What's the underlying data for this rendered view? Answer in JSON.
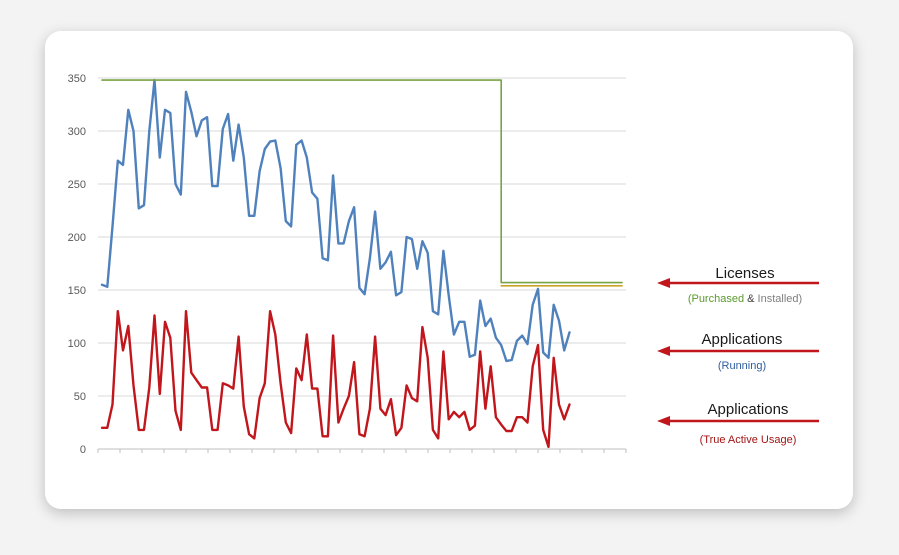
{
  "chart_data": {
    "type": "line",
    "title": "",
    "xlabel": "",
    "ylabel": "",
    "ylim": [
      0,
      350
    ],
    "yticks": [
      0,
      50,
      100,
      150,
      200,
      250,
      300,
      350
    ],
    "grid": true,
    "legend": "none",
    "x_count": 100,
    "series": [
      {
        "color": "#4f81bd",
        "values": [
          155,
          153,
          210,
          272,
          268,
          320,
          300,
          227,
          230,
          300,
          348,
          275,
          320,
          317,
          250,
          240,
          337,
          318,
          295,
          310,
          313,
          248,
          248,
          302,
          316,
          272,
          306,
          275,
          220,
          220,
          262,
          283,
          290,
          291,
          265,
          215,
          210,
          287,
          291,
          275,
          242,
          236,
          180,
          178,
          258,
          194,
          194,
          215,
          228,
          152,
          146,
          180,
          224,
          170,
          176,
          186,
          145,
          148,
          200,
          198,
          170,
          196,
          185,
          130,
          127,
          187,
          145,
          108,
          120,
          120,
          87,
          89,
          140,
          116,
          123,
          105,
          98,
          83,
          84,
          102,
          107,
          99,
          136,
          151,
          91,
          86,
          136,
          121,
          93,
          110
        ]
      },
      {
        "color": "#77a341",
        "values": [
          348,
          348,
          348,
          348,
          348,
          348,
          348,
          348,
          348,
          348,
          348,
          348,
          348,
          348,
          348,
          348,
          348,
          348,
          348,
          348,
          348,
          348,
          348,
          348,
          348,
          348,
          348,
          348,
          348,
          348,
          348,
          348,
          348,
          348,
          348,
          348,
          348,
          348,
          348,
          348,
          348,
          348,
          348,
          348,
          348,
          348,
          348,
          348,
          348,
          348,
          348,
          348,
          348,
          348,
          348,
          348,
          348,
          348,
          348,
          348,
          348,
          348,
          348,
          348,
          348,
          348,
          348,
          348,
          348,
          348,
          348,
          348,
          348,
          348,
          348,
          348,
          157,
          157,
          157,
          157,
          157,
          157,
          157,
          157,
          157,
          157,
          157,
          157,
          157,
          157,
          157,
          157,
          157,
          157,
          157,
          157,
          157,
          157,
          157,
          157
        ]
      },
      {
        "color": "#c9a227",
        "values": [
          null,
          null,
          null,
          null,
          null,
          null,
          null,
          null,
          null,
          null,
          null,
          null,
          null,
          null,
          null,
          null,
          null,
          null,
          null,
          null,
          null,
          null,
          null,
          null,
          null,
          null,
          null,
          null,
          null,
          null,
          null,
          null,
          null,
          null,
          null,
          null,
          null,
          null,
          null,
          null,
          null,
          null,
          null,
          null,
          null,
          null,
          null,
          null,
          null,
          null,
          null,
          null,
          null,
          null,
          null,
          null,
          null,
          null,
          null,
          null,
          null,
          null,
          null,
          null,
          null,
          null,
          null,
          null,
          null,
          null,
          null,
          null,
          null,
          null,
          null,
          null,
          154,
          154,
          154,
          154,
          154,
          154,
          154,
          154,
          154,
          154,
          154,
          154,
          154,
          154,
          154,
          154,
          154,
          154,
          154,
          154,
          154,
          154,
          154,
          154
        ]
      },
      {
        "color": "#c0161c",
        "values": [
          20,
          20,
          42,
          130,
          93,
          116,
          60,
          18,
          18,
          58,
          126,
          52,
          120,
          105,
          36,
          18,
          130,
          72,
          65,
          58,
          58,
          18,
          18,
          62,
          60,
          57,
          106,
          40,
          14,
          10,
          48,
          62,
          130,
          108,
          62,
          25,
          15,
          76,
          65,
          108,
          57,
          57,
          12,
          12,
          107,
          25,
          38,
          50,
          82,
          14,
          12,
          38,
          106,
          38,
          32,
          47,
          13,
          20,
          60,
          48,
          45,
          115,
          86,
          18,
          10,
          92,
          28,
          35,
          30,
          35,
          18,
          22,
          92,
          38,
          78,
          30,
          23,
          17,
          17,
          30,
          30,
          25,
          78,
          98,
          18,
          2,
          86,
          42,
          28,
          42
        ]
      }
    ],
    "annotations": [
      {
        "label": "Licenses",
        "sub_parts": [
          {
            "text": "(Purchased",
            "color": "#5a9a2e"
          },
          {
            "text": " & ",
            "color": "#404040"
          },
          {
            "text": "Installed)",
            "color": "#7f7f7f"
          }
        ]
      },
      {
        "label": "Applications",
        "sub_parts": [
          {
            "text": "(Running)",
            "color": "#2e5e9e"
          }
        ]
      },
      {
        "label": "Applications",
        "sub_parts": [
          {
            "text": "(True Active Usage)",
            "color": "#a31515"
          }
        ]
      }
    ],
    "arrow_color": "#c0161c"
  }
}
